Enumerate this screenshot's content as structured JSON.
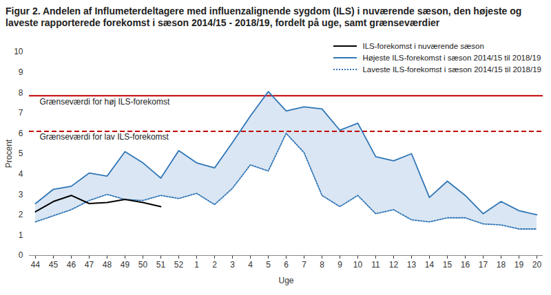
{
  "chart_data": {
    "type": "line",
    "title": "Figur 2. Andelen af Influmeterdeltagere med influenzalignende sygdom (ILS) i nuværende sæson, den højeste og laveste rapporterede forekomst i sæson 2014/15 - 2018/19, fordelt på uge, samt grænseværdier",
    "x_label": "Uge",
    "y_label": "Procent",
    "categories": [
      "44",
      "45",
      "46",
      "47",
      "48",
      "49",
      "50",
      "51",
      "52",
      "1",
      "2",
      "3",
      "4",
      "5",
      "6",
      "7",
      "8",
      "9",
      "10",
      "11",
      "12",
      "13",
      "14",
      "15",
      "16",
      "17",
      "18",
      "19",
      "20"
    ],
    "series": [
      {
        "name": "ILS-forekomst i nuværende sæson",
        "color": "#000000",
        "line_style": "solid",
        "values": [
          2.15,
          2.65,
          2.95,
          2.55,
          2.6,
          2.75,
          2.6,
          2.4,
          null,
          null,
          null,
          null,
          null,
          null,
          null,
          null,
          null,
          null,
          null,
          null,
          null,
          null,
          null,
          null,
          null,
          null,
          null,
          null,
          null
        ]
      },
      {
        "name": "Højeste ILS-forekomst i sæson 2014/15 til 2018/19",
        "color": "#2e75b6",
        "line_style": "solid",
        "values": [
          2.55,
          3.25,
          3.4,
          4.05,
          3.9,
          5.1,
          4.55,
          3.8,
          5.15,
          4.55,
          4.3,
          5.55,
          6.85,
          8.05,
          7.1,
          7.3,
          7.2,
          6.15,
          6.5,
          4.85,
          4.65,
          5.0,
          2.85,
          3.65,
          2.95,
          2.05,
          2.65,
          2.2,
          2.0
        ]
      },
      {
        "name": "Laveste ILS-forekomst i sæson 2014/15 til 2018/19",
        "color": "#2e75b6",
        "line_style": "dotted",
        "values": [
          1.65,
          1.95,
          2.25,
          2.7,
          3.0,
          2.75,
          2.7,
          2.95,
          2.8,
          3.05,
          2.5,
          3.3,
          4.45,
          4.15,
          6.0,
          5.05,
          2.95,
          2.4,
          2.95,
          2.05,
          2.25,
          1.75,
          1.65,
          1.85,
          1.85,
          1.55,
          1.5,
          1.3,
          1.3
        ]
      }
    ],
    "band": {
      "series": [
        "Højeste ILS-forekomst i sæson 2014/15 til 2018/19",
        "Laveste ILS-forekomst i sæson 2014/15 til 2018/19"
      ],
      "color": "#dae6f3"
    },
    "annotations": [
      {
        "text": "Grænseværdi for høj ILS-forekomst",
        "value": 7.85,
        "color": "#c00000",
        "line_style": "solid"
      },
      {
        "text": "Grænseværdi for lav ILS-forekomst",
        "value": 6.1,
        "color": "#c00000",
        "line_style": "dashed"
      }
    ],
    "ylim": [
      0,
      10
    ],
    "yticks": [
      0,
      1,
      2,
      3,
      4,
      5,
      6,
      7,
      8,
      9,
      10
    ],
    "grid": false,
    "legend": "top-right"
  }
}
